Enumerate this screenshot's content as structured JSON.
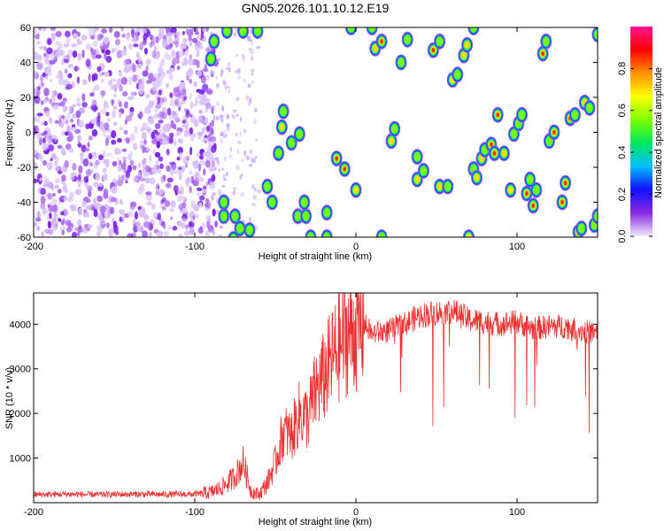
{
  "title": "GN05.2026.101.10.12.E19",
  "chart_data": [
    {
      "type": "heatmap",
      "xlabel": "Height of straight line (km)",
      "ylabel": "Frequency (Hz)",
      "xlim": [
        -200,
        150
      ],
      "ylim": [
        -60,
        60
      ],
      "x_ticks": [
        -200,
        -100,
        0,
        100
      ],
      "y_ticks": [
        -60,
        -40,
        -20,
        0,
        20,
        40,
        60
      ],
      "colorbar": {
        "label": "Normalized spectral amplitude",
        "range": [
          0,
          1
        ],
        "ticks": [
          0,
          0.2,
          0.4,
          0.6,
          0.8
        ],
        "tick_labels": [
          "0.0",
          "0.2",
          "0.4",
          "0.6",
          "0.8"
        ],
        "colormap": [
          "#f0e8ff",
          "#8a2be2",
          "#1010ff",
          "#00bfff",
          "#00e860",
          "#7cff00",
          "#ffff00",
          "#ff9000",
          "#ff0000",
          "#ff1493"
        ]
      },
      "noise_region_x": [
        -200,
        -90
      ],
      "blobs": [
        {
          "x": -88,
          "y": 52,
          "a": 0.6
        },
        {
          "x": -90,
          "y": 42,
          "a": 0.5
        },
        {
          "x": -80,
          "y": 58,
          "a": 0.6
        },
        {
          "x": -70,
          "y": 58,
          "a": 0.5
        },
        {
          "x": -61,
          "y": 58,
          "a": 0.6
        },
        {
          "x": -82,
          "y": -40,
          "a": 0.5
        },
        {
          "x": -82,
          "y": -48,
          "a": 0.5
        },
        {
          "x": -75,
          "y": -48,
          "a": 0.5
        },
        {
          "x": -72,
          "y": -55,
          "a": 0.6
        },
        {
          "x": -66,
          "y": -56,
          "a": 0.6
        },
        {
          "x": -76,
          "y": -61,
          "a": 0.5
        },
        {
          "x": -55,
          "y": -31,
          "a": 0.6
        },
        {
          "x": -52,
          "y": -40,
          "a": 0.6
        },
        {
          "x": -48,
          "y": -12,
          "a": 0.55
        },
        {
          "x": -46,
          "y": 3,
          "a": 0.7
        },
        {
          "x": -45,
          "y": 12,
          "a": 0.55
        },
        {
          "x": -40,
          "y": -6,
          "a": 0.55
        },
        {
          "x": -35,
          "y": -1,
          "a": 0.5
        },
        {
          "x": -36,
          "y": -48,
          "a": 0.6
        },
        {
          "x": -31,
          "y": -48,
          "a": 0.5
        },
        {
          "x": -32,
          "y": -40,
          "a": 0.5
        },
        {
          "x": -28,
          "y": -60,
          "a": 0.55
        },
        {
          "x": -18,
          "y": -60,
          "a": 0.5
        },
        {
          "x": -18,
          "y": -46,
          "a": 0.55
        },
        {
          "x": -12,
          "y": -15,
          "a": 0.8
        },
        {
          "x": -7,
          "y": -21,
          "a": 0.8
        },
        {
          "x": 0,
          "y": -33,
          "a": 0.75
        },
        {
          "x": -3,
          "y": 60,
          "a": 0.5
        },
        {
          "x": 10,
          "y": 60,
          "a": 0.5
        },
        {
          "x": 12,
          "y": 48,
          "a": 0.7
        },
        {
          "x": 16,
          "y": 52,
          "a": 0.8
        },
        {
          "x": 16,
          "y": -60,
          "a": 0.5
        },
        {
          "x": 22,
          "y": -5,
          "a": 0.75
        },
        {
          "x": 24,
          "y": 2,
          "a": 0.6
        },
        {
          "x": 28,
          "y": 40,
          "a": 0.6
        },
        {
          "x": 32,
          "y": 53,
          "a": 0.55
        },
        {
          "x": 38,
          "y": -14,
          "a": 0.55
        },
        {
          "x": 38,
          "y": -27,
          "a": 0.7
        },
        {
          "x": 42,
          "y": -22,
          "a": 0.55
        },
        {
          "x": 48,
          "y": 47,
          "a": 0.8
        },
        {
          "x": 52,
          "y": 52,
          "a": 0.55
        },
        {
          "x": 52,
          "y": -31,
          "a": 0.65
        },
        {
          "x": 57,
          "y": -31,
          "a": 0.55
        },
        {
          "x": 60,
          "y": 30,
          "a": 0.7
        },
        {
          "x": 63,
          "y": 33,
          "a": 0.55
        },
        {
          "x": 67,
          "y": 44,
          "a": 0.7
        },
        {
          "x": 69,
          "y": 50,
          "a": 0.75
        },
        {
          "x": 73,
          "y": 60,
          "a": 0.5
        },
        {
          "x": 70,
          "y": -60,
          "a": 0.65
        },
        {
          "x": 73,
          "y": -21,
          "a": 0.6
        },
        {
          "x": 75,
          "y": -26,
          "a": 0.65
        },
        {
          "x": 78,
          "y": -15,
          "a": 0.65
        },
        {
          "x": 80,
          "y": -10,
          "a": 0.55
        },
        {
          "x": 84,
          "y": -7,
          "a": 0.8
        },
        {
          "x": 86,
          "y": -12,
          "a": 0.8
        },
        {
          "x": 88,
          "y": 10,
          "a": 0.8
        },
        {
          "x": 92,
          "y": -12,
          "a": 0.75
        },
        {
          "x": 96,
          "y": -33,
          "a": 0.75
        },
        {
          "x": 98,
          "y": -1,
          "a": 0.55
        },
        {
          "x": 101,
          "y": 5,
          "a": 0.6
        },
        {
          "x": 103,
          "y": 10,
          "a": 0.6
        },
        {
          "x": 106,
          "y": -35,
          "a": 0.8
        },
        {
          "x": 108,
          "y": -27,
          "a": 0.55
        },
        {
          "x": 110,
          "y": -42,
          "a": 0.8
        },
        {
          "x": 112,
          "y": -33,
          "a": 0.55
        },
        {
          "x": 116,
          "y": 45,
          "a": 0.85
        },
        {
          "x": 118,
          "y": 52,
          "a": 0.6
        },
        {
          "x": 120,
          "y": -5,
          "a": 0.6
        },
        {
          "x": 123,
          "y": 0,
          "a": 0.85
        },
        {
          "x": 128,
          "y": -40,
          "a": 0.85
        },
        {
          "x": 130,
          "y": -29,
          "a": 0.8
        },
        {
          "x": 133,
          "y": 8,
          "a": 0.85
        },
        {
          "x": 136,
          "y": 10,
          "a": 0.6
        },
        {
          "x": 138,
          "y": -57,
          "a": 0.8
        },
        {
          "x": 140,
          "y": -55,
          "a": 0.6
        },
        {
          "x": 142,
          "y": 17,
          "a": 0.65
        },
        {
          "x": 145,
          "y": 14,
          "a": 0.55
        },
        {
          "x": 148,
          "y": -53,
          "a": 0.6
        },
        {
          "x": 150,
          "y": 56,
          "a": 0.6
        },
        {
          "x": 150,
          "y": -48,
          "a": 0.55
        }
      ]
    },
    {
      "type": "line",
      "xlabel": "Height of straight line (km)",
      "ylabel": "SNR (10 * v/v)",
      "xlim": [
        -200,
        150
      ],
      "ylim": [
        0,
        4700
      ],
      "x_ticks": [
        -200,
        -100,
        0,
        100
      ],
      "y_ticks": [
        1000,
        2000,
        3000,
        4000
      ],
      "series": [
        {
          "color": "#ee3030",
          "x": [
            -200,
            -180,
            -160,
            -140,
            -120,
            -100,
            -90,
            -85,
            -80,
            -75,
            -70,
            -65,
            -60,
            -55,
            -50,
            -45,
            -40,
            -35,
            -30,
            -25,
            -20,
            -15,
            -10,
            -5,
            0,
            5,
            10,
            20,
            30,
            40,
            50,
            60,
            70,
            80,
            90,
            100,
            110,
            120,
            130,
            140,
            150
          ],
          "y": [
            180,
            190,
            180,
            190,
            185,
            190,
            230,
            310,
            430,
            600,
            900,
            250,
            180,
            450,
            900,
            1600,
            1500,
            2000,
            1900,
            2500,
            2800,
            3200,
            3500,
            3800,
            3900,
            4000,
            3800,
            3850,
            4000,
            4200,
            4250,
            4300,
            4100,
            4050,
            4000,
            4050,
            3900,
            3950,
            3950,
            3850,
            3800
          ]
        }
      ]
    }
  ]
}
